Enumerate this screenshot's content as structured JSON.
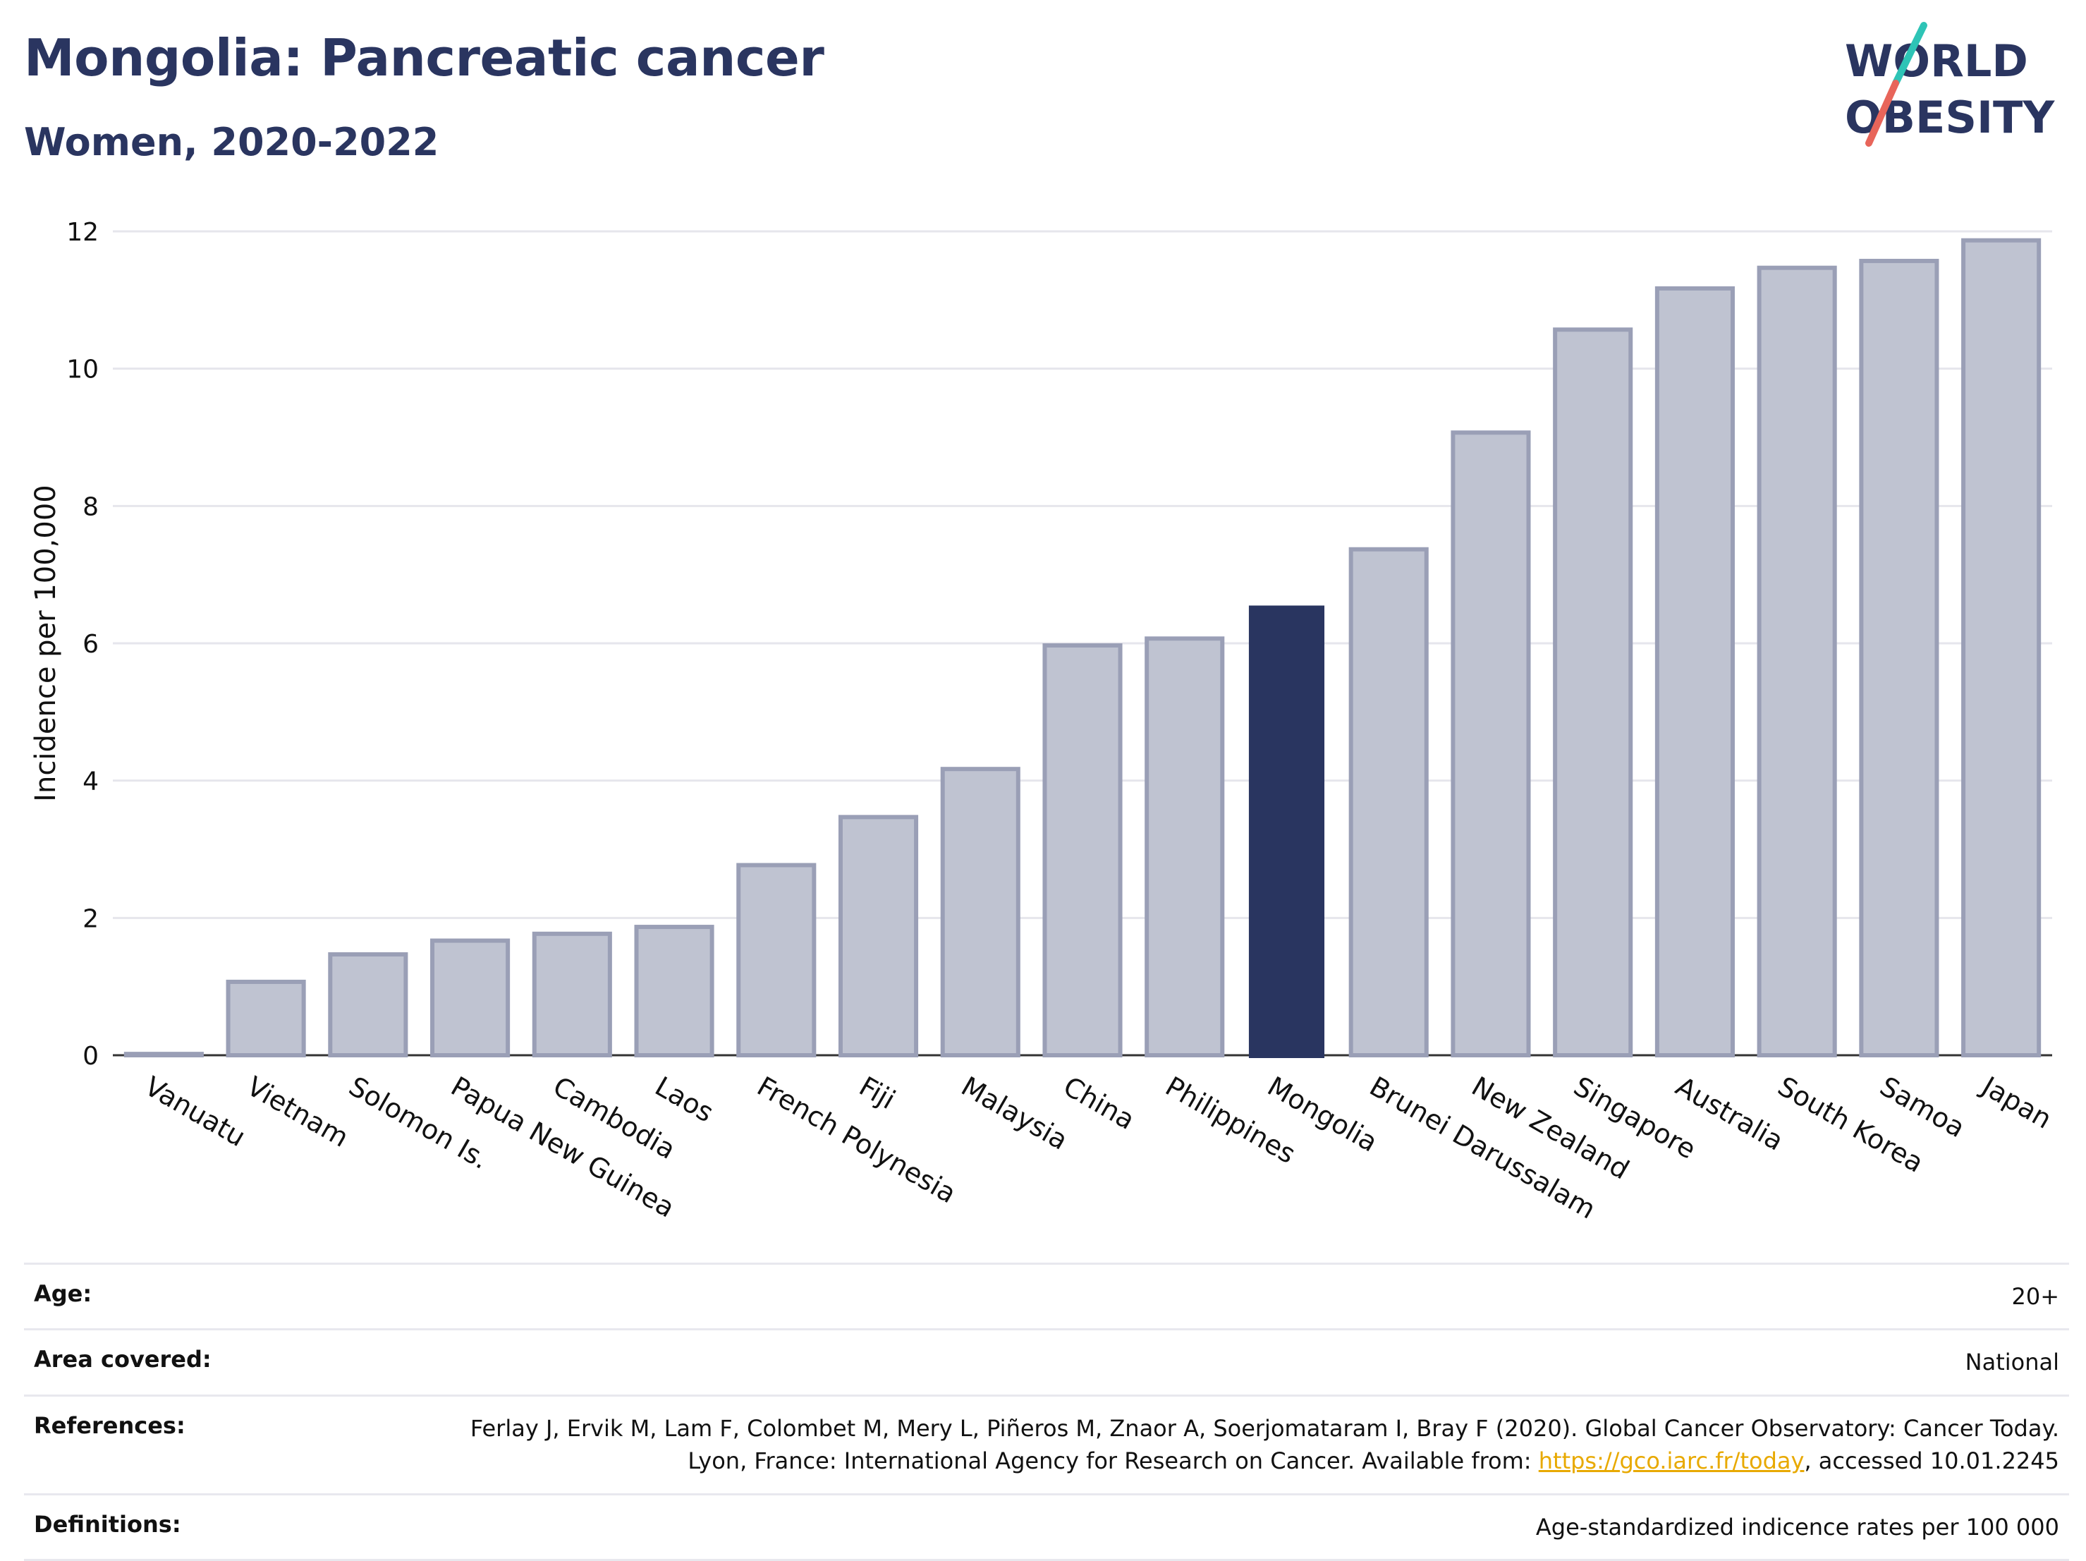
{
  "title": "Mongolia: Pancreatic cancer",
  "subtitle": "Women, 2020-2022",
  "logo": {
    "line1": "WORLD",
    "line2": "OBESITY",
    "colors": {
      "text": "#2a3560",
      "slash_top": "#2ec4b6",
      "slash_bottom": "#e8655a"
    }
  },
  "colors": {
    "bar": "#bfc3d1",
    "bar_border": "#9a9fb6",
    "highlight": "#293560",
    "grid": "#e6e6ec",
    "axis": "#333333"
  },
  "chart_data": {
    "type": "bar",
    "categories": [
      "Vanuatu",
      "Vietnam",
      "Solomon Is.",
      "Papua New Guinea",
      "Cambodia",
      "Laos",
      "French Polynesia",
      "Fiji",
      "Malaysia",
      "China",
      "Philippines",
      "Mongolia",
      "Brunei Darussalam",
      "New Zealand",
      "Singapore",
      "Australia",
      "South Korea",
      "Samoa",
      "Japan"
    ],
    "values": [
      0.05,
      1.1,
      1.5,
      1.7,
      1.8,
      1.9,
      2.8,
      3.5,
      4.2,
      6.0,
      6.1,
      6.55,
      7.4,
      9.1,
      10.6,
      11.2,
      11.5,
      11.6,
      11.9
    ],
    "highlight": "Mongolia",
    "ylabel": "Incidence per 100,000",
    "ylim": [
      0,
      12
    ],
    "yticks": [
      0,
      2,
      4,
      6,
      8,
      10,
      12
    ],
    "grid": true
  },
  "meta": [
    {
      "key": "Age:",
      "value": "20+"
    },
    {
      "key": "Area covered:",
      "value": "National"
    },
    {
      "key": "References:",
      "value": "Ferlay J, Ervik M, Lam F, Colombet M, Mery L, Piñeros M, Znaor A, Soerjomataram I, Bray F (2020). Global Cancer Observatory: Cancer Today. Lyon, France: International Agency for Research on Cancer. Available from: ",
      "link": "https://gco.iarc.fr/today",
      "suffix": ", accessed 10.01.2245"
    },
    {
      "key": "Definitions:",
      "value": "Age-standardized indicence rates per 100 000"
    }
  ]
}
